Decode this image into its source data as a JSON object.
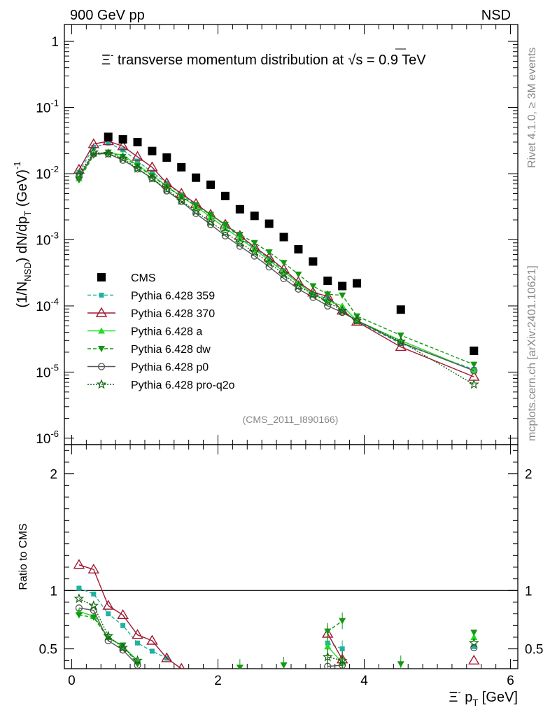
{
  "header": {
    "left": "900 GeV pp",
    "right": "NSD",
    "side_top": "Rivet 4.1.0, ≥ 3M events",
    "side_bottom": "mcplots.cern.ch [arXiv:2401.10621]"
  },
  "chart_data": [
    {
      "type": "scatter",
      "title": "Ξ⁻ transverse momentum distribution at √s = 0.9 TeV",
      "title_parts": {
        "pre": "Ξ",
        "sup": "-",
        "mid": " transverse momentum distribution at",
        "root": "s",
        "post": " = 0.9 TeV"
      },
      "ylabel": "(1/N_NSD) dN/dp_T (GeV)^-1",
      "xlabel": "",
      "ylog": true,
      "xlim": [
        -0.1,
        6.1
      ],
      "ylim": [
        8e-07,
        1.8
      ],
      "y_ticks": [
        "10^-6",
        "10^-5",
        "10^-4",
        "10^-3",
        "10^-2",
        "10^-1",
        "1"
      ],
      "analysis_tag": "(CMS_2011_I890166)",
      "x": [
        0.1,
        0.3,
        0.5,
        0.7,
        0.9,
        1.1,
        1.3,
        1.5,
        1.7,
        1.9,
        2.1,
        2.3,
        2.5,
        2.7,
        2.9,
        3.1,
        3.3,
        3.5,
        3.7,
        3.9,
        4.5,
        5.5
      ],
      "series": [
        {
          "name": "CMS",
          "color": "#000000",
          "marker": "square",
          "x": [
            0.5,
            0.7,
            0.9,
            1.1,
            1.3,
            1.5,
            1.7,
            1.9,
            2.1,
            2.3,
            2.5,
            2.7,
            2.9,
            3.1,
            3.3,
            3.5,
            3.7,
            3.9,
            4.5,
            5.5
          ],
          "values": [
            0.036,
            0.033,
            0.03,
            0.022,
            0.0175,
            0.0125,
            0.0087,
            0.0068,
            0.0046,
            0.0029,
            0.0023,
            0.00175,
            0.0011,
            0.00072,
            0.00047,
            0.00024,
            0.0002,
            0.00022,
            8.8e-05,
            2.1e-05
          ]
        },
        {
          "name": "Pythia 6.428 359",
          "color": "#20b2a0",
          "marker": "small-square",
          "dash": "dashed",
          "values": [
            0.0105,
            0.025,
            0.029,
            0.023,
            0.0155,
            0.0105,
            0.0072,
            0.0048,
            0.0034,
            0.0024,
            0.00165,
            0.0011,
            0.00075,
            0.00052,
            0.00034,
            0.00022,
            0.00015,
            0.00013,
            8.5e-05,
            5.8e-05,
            2.7e-05,
            1.1e-05
          ]
        },
        {
          "name": "Pythia 6.428 370",
          "color": "#a01830",
          "marker": "open-triangle",
          "dash": "solid",
          "values": [
            0.0115,
            0.028,
            0.031,
            0.026,
            0.018,
            0.0125,
            0.0072,
            0.005,
            0.0035,
            0.0024,
            0.0017,
            0.00115,
            0.00078,
            0.00054,
            0.00036,
            0.00023,
            0.00016,
            0.00014,
            8.5e-05,
            5.8e-05,
            2.4e-05,
            8.5e-06
          ]
        },
        {
          "name": "Pythia 6.428 a",
          "color": "#22dd22",
          "marker": "triangle",
          "dash": "solid",
          "values": [
            0.0085,
            0.02,
            0.021,
            0.019,
            0.0135,
            0.0095,
            0.0065,
            0.0045,
            0.0032,
            0.0022,
            0.0015,
            0.00105,
            0.00072,
            0.00049,
            0.00033,
            0.00022,
            0.00015,
            0.00012,
            0.0001,
            6e-05,
            3e-05,
            1.05e-05
          ]
        },
        {
          "name": "Pythia 6.428 dw",
          "color": "#119911",
          "marker": "down-triangle",
          "dash": "dashed",
          "values": [
            0.008,
            0.019,
            0.021,
            0.018,
            0.013,
            0.0092,
            0.0063,
            0.0045,
            0.0033,
            0.0024,
            0.0017,
            0.0012,
            0.0009,
            0.00065,
            0.00045,
            0.0003,
            0.0002,
            0.00015,
            0.000145,
            7e-05,
            3.6e-05,
            1.3e-05
          ]
        },
        {
          "name": "Pythia 6.428 p0",
          "color": "#555555",
          "marker": "open-circle",
          "dash": "solid",
          "values": [
            0.009,
            0.02,
            0.02,
            0.016,
            0.0118,
            0.0085,
            0.0055,
            0.0038,
            0.0025,
            0.0017,
            0.00115,
            0.0008,
            0.00057,
            0.00039,
            0.00026,
            0.00018,
            0.000135,
            0.0001,
            8e-05,
            6e-05,
            2.8e-05,
            1.05e-05
          ]
        },
        {
          "name": "Pythia 6.428 pro-q2o",
          "color": "#116611",
          "marker": "star",
          "dash": "dotted",
          "values": [
            0.0098,
            0.021,
            0.02,
            0.017,
            0.012,
            0.0085,
            0.0058,
            0.0039,
            0.0027,
            0.00185,
            0.0013,
            0.0009,
            0.00065,
            0.00045,
            0.0003,
            0.0002,
            0.00015,
            0.000115,
            8.5e-05,
            6e-05,
            2.9e-05,
            6.5e-06
          ]
        }
      ]
    },
    {
      "type": "line",
      "title": "",
      "xlabel": "Ξ⁻ p_T [GeV]",
      "xlabel_parts": {
        "pre": "Ξ",
        "sup": "-",
        "mid": " p",
        "sub": "T",
        "post": " [GeV]"
      },
      "ylabel": "Ratio to CMS",
      "xlim": [
        -0.1,
        6.1
      ],
      "ylim": [
        0.33,
        2.25
      ],
      "x_ticks": [
        "0",
        "2",
        "4",
        "6"
      ],
      "y_ticks": [
        "0.5",
        "1",
        "2"
      ],
      "reference": 1.0,
      "series": [
        {
          "name": "Pythia 6.428 359",
          "x": [
            0.1,
            0.3,
            0.5,
            0.7,
            0.9,
            1.1,
            1.3,
            3.5,
            3.7,
            5.5
          ],
          "values": [
            1.02,
            0.97,
            0.8,
            0.7,
            0.55,
            0.48,
            0.42,
            0.55,
            0.5,
            0.52
          ]
        },
        {
          "name": "Pythia 6.428 370",
          "x": [
            0.1,
            0.3,
            0.5,
            0.7,
            0.9,
            1.1,
            1.3,
            1.5,
            3.5,
            3.7,
            5.5
          ],
          "values": [
            1.22,
            1.18,
            0.87,
            0.79,
            0.62,
            0.57,
            0.42,
            0.33,
            0.63,
            0.41,
            0.4
          ]
        },
        {
          "name": "Pythia 6.428 a",
          "x": [
            0.1,
            0.3,
            0.5,
            0.7,
            0.9,
            3.5,
            3.7,
            5.5
          ],
          "values": [
            0.82,
            0.78,
            0.6,
            0.52,
            0.4,
            0.52,
            0.38,
            0.6
          ]
        },
        {
          "name": "Pythia 6.428 dw",
          "x": [
            0.1,
            0.3,
            0.5,
            0.7,
            0.9,
            2.3,
            2.9,
            3.5,
            3.7,
            4.5,
            5.5
          ],
          "values": [
            0.79,
            0.77,
            0.59,
            0.53,
            0.37,
            0.34,
            0.36,
            0.65,
            0.74,
            0.37,
            0.64
          ]
        },
        {
          "name": "Pythia 6.428 p0",
          "x": [
            0.1,
            0.3,
            0.5,
            0.7,
            0.9,
            3.5,
            3.7,
            5.5
          ],
          "values": [
            0.85,
            0.83,
            0.57,
            0.49,
            0.36,
            0.35,
            0.36,
            0.51
          ]
        },
        {
          "name": "Pythia 6.428 pro-q2o",
          "x": [
            0.1,
            0.3,
            0.5,
            0.7,
            0.9,
            3.5,
            3.7,
            5.5
          ],
          "values": [
            0.93,
            0.87,
            0.61,
            0.51,
            0.4,
            0.43,
            0.4,
            0.55
          ]
        }
      ]
    }
  ]
}
